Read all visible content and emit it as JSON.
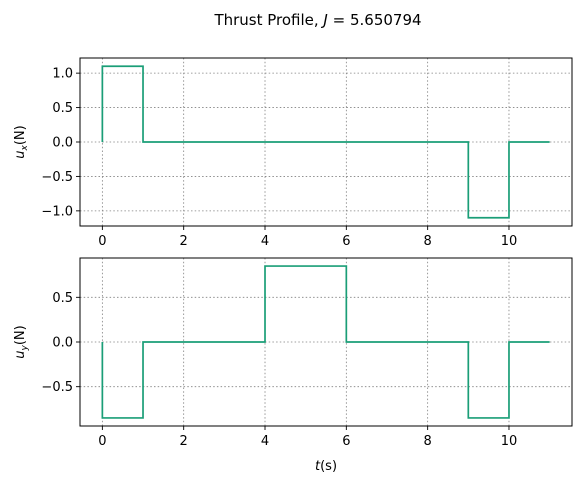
{
  "figure": {
    "suptitle": "Thrust Profile, J = 5.650794",
    "suptitle_prefix": "Thrust Profile, ",
    "suptitle_var": "J",
    "suptitle_suffix": " = 5.650794"
  },
  "colors": {
    "line": "#1a9e77",
    "grid": "#808080",
    "background": "#ffffff"
  },
  "chart_data": [
    {
      "type": "line",
      "title": "",
      "xlabel": "",
      "ylabel": "u_x(N)",
      "ylabel_main": "u",
      "ylabel_sub": "x",
      "ylabel_tail": "(N)",
      "xlim": [
        -0.55,
        11.55
      ],
      "ylim": [
        -1.22,
        1.22
      ],
      "xticks": [
        0,
        2,
        4,
        6,
        8,
        10
      ],
      "xtick_labels": [
        "0",
        "2",
        "4",
        "6",
        "8",
        "10"
      ],
      "yticks": [
        -1.0,
        -0.5,
        0.0,
        0.5,
        1.0
      ],
      "ytick_labels": [
        "−1.0",
        "−0.5",
        "0.0",
        "0.5",
        "1.0"
      ],
      "grid": true,
      "series": [
        {
          "x": [
            0,
            0,
            1,
            1,
            9,
            9,
            10,
            10,
            11
          ],
          "y": [
            0,
            1.1,
            1.1,
            0,
            0,
            -1.1,
            -1.1,
            0,
            0
          ]
        }
      ]
    },
    {
      "type": "line",
      "title": "",
      "xlabel": "t(s)",
      "xlabel_main": "t",
      "xlabel_tail": "(s)",
      "ylabel": "u_y(N)",
      "ylabel_main": "u",
      "ylabel_sub": "y",
      "ylabel_tail": "(N)",
      "xlim": [
        -0.55,
        11.55
      ],
      "ylim": [
        -0.94,
        0.94
      ],
      "xticks": [
        0,
        2,
        4,
        6,
        8,
        10
      ],
      "xtick_labels": [
        "0",
        "2",
        "4",
        "6",
        "8",
        "10"
      ],
      "yticks": [
        -0.5,
        0.0,
        0.5
      ],
      "ytick_labels": [
        "−0.5",
        "0.0",
        "0.5"
      ],
      "grid": true,
      "series": [
        {
          "x": [
            0,
            0,
            1,
            1,
            4,
            4,
            6,
            6,
            9,
            9,
            10,
            10,
            11
          ],
          "y": [
            0,
            -0.85,
            -0.85,
            0,
            0,
            0.85,
            0.85,
            0,
            0,
            -0.85,
            -0.85,
            0,
            0
          ]
        }
      ]
    }
  ]
}
